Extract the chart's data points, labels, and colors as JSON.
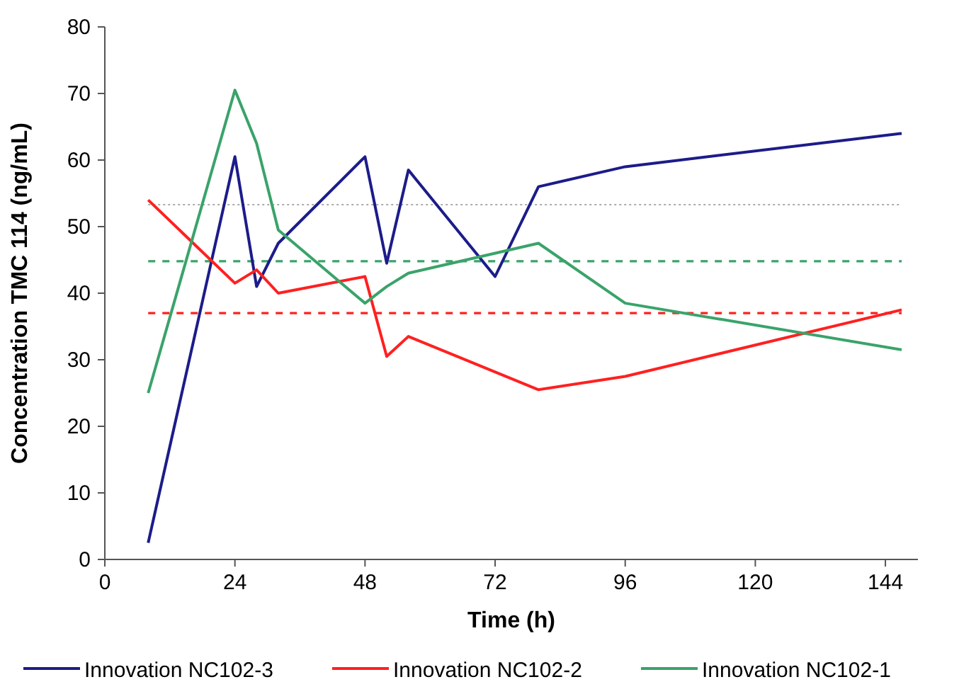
{
  "chart_data": {
    "type": "line",
    "xlabel": "Time (h)",
    "ylabel": "Concentration TMC 114 (ng/mL)",
    "xlim": [
      0,
      150
    ],
    "xticks": [
      0,
      24,
      48,
      72,
      96,
      120,
      144
    ],
    "ylim": [
      0,
      80
    ],
    "yticks": [
      0,
      10,
      20,
      30,
      40,
      50,
      60,
      70,
      80
    ],
    "grid": false,
    "legend": "bottom",
    "marker": "none",
    "line_style": "solid",
    "series": [
      {
        "name": "Innovation NC102-3",
        "color": "#1c1c8a",
        "x": [
          8,
          24,
          28,
          32,
          48,
          52,
          56,
          72,
          80,
          96,
          147
        ],
        "values": [
          2.5,
          60.5,
          41,
          47.5,
          60.5,
          44.5,
          58.5,
          42.5,
          56,
          59,
          64
        ]
      },
      {
        "name": "Innovation NC102-2",
        "color": "#ff2020",
        "x": [
          8,
          24,
          28,
          32,
          48,
          52,
          56,
          80,
          96,
          147
        ],
        "values": [
          54,
          41.5,
          43.5,
          40,
          42.5,
          30.5,
          33.5,
          25.5,
          27.5,
          37.5
        ]
      },
      {
        "name": "Innovation NC102-1",
        "color": "#3aa36a",
        "x": [
          8,
          24,
          28,
          32,
          48,
          52,
          56,
          80,
          96,
          147
        ],
        "values": [
          25,
          70.5,
          62.5,
          49.5,
          38.5,
          41,
          43,
          47.5,
          38.5,
          31.5
        ]
      }
    ],
    "ref_lines": [
      {
        "axis": "y",
        "value": 53.3,
        "color": "#aaaaaa",
        "line_style": "dotted"
      },
      {
        "axis": "y",
        "value": 44.8,
        "color": "#3aa36a",
        "line_style": "dashed"
      },
      {
        "axis": "y",
        "value": 37,
        "color": "#ff2020",
        "line_style": "dashed"
      }
    ]
  }
}
